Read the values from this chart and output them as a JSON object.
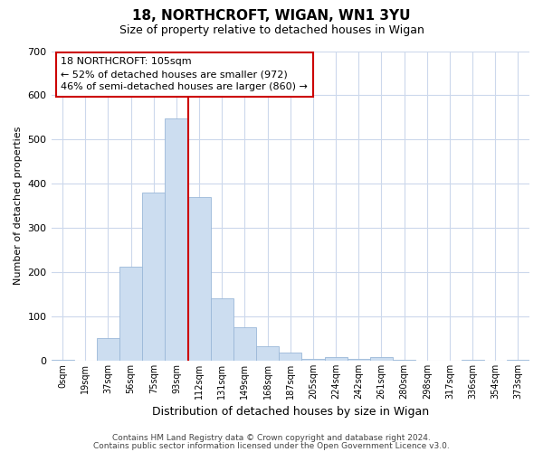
{
  "title": "18, NORTHCROFT, WIGAN, WN1 3YU",
  "subtitle": "Size of property relative to detached houses in Wigan",
  "xlabel": "Distribution of detached houses by size in Wigan",
  "ylabel": "Number of detached properties",
  "bar_labels": [
    "0sqm",
    "19sqm",
    "37sqm",
    "56sqm",
    "75sqm",
    "93sqm",
    "112sqm",
    "131sqm",
    "149sqm",
    "168sqm",
    "187sqm",
    "205sqm",
    "224sqm",
    "242sqm",
    "261sqm",
    "280sqm",
    "298sqm",
    "317sqm",
    "336sqm",
    "354sqm",
    "373sqm"
  ],
  "bar_values": [
    2,
    0,
    52,
    212,
    380,
    547,
    370,
    142,
    75,
    32,
    18,
    5,
    8,
    5,
    8,
    2,
    0,
    0,
    2,
    0,
    2
  ],
  "bar_color": "#ccddf0",
  "bar_edge_color": "#9ab8d8",
  "vline_x": 6,
  "vline_color": "#cc0000",
  "annotation_title": "18 NORTHCROFT: 105sqm",
  "annotation_line1": "← 52% of detached houses are smaller (972)",
  "annotation_line2": "46% of semi-detached houses are larger (860) →",
  "annotation_box_color": "#ffffff",
  "annotation_box_edge": "#cc0000",
  "ylim": [
    0,
    700
  ],
  "yticks": [
    0,
    100,
    200,
    300,
    400,
    500,
    600,
    700
  ],
  "footer1": "Contains HM Land Registry data © Crown copyright and database right 2024.",
  "footer2": "Contains public sector information licensed under the Open Government Licence v3.0.",
  "bg_color": "#ffffff",
  "grid_color": "#ccd8ec"
}
